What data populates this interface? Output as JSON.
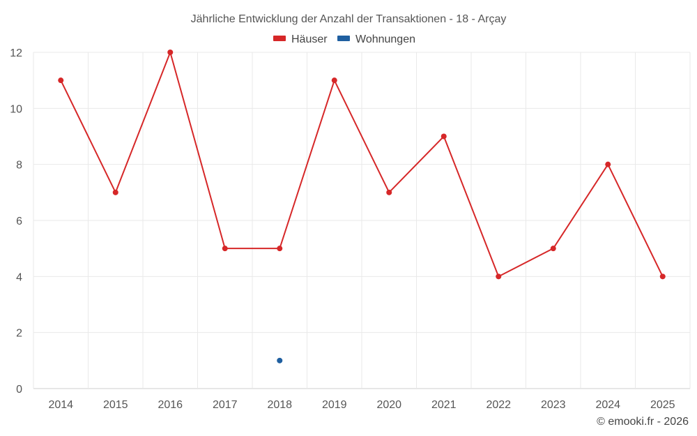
{
  "chart_data": {
    "type": "line",
    "title": "Jährliche Entwicklung der Anzahl der Transaktionen - 18 - Arçay",
    "categories": [
      "2014",
      "2015",
      "2016",
      "2017",
      "2018",
      "2019",
      "2020",
      "2021",
      "2022",
      "2023",
      "2024",
      "2025"
    ],
    "series": [
      {
        "name": "Häuser",
        "color": "#d62728",
        "values": [
          11,
          7,
          12,
          5,
          5,
          11,
          7,
          9,
          4,
          5,
          8,
          4
        ]
      },
      {
        "name": "Wohnungen",
        "color": "#1f5fa0",
        "values": [
          null,
          null,
          null,
          null,
          1,
          null,
          null,
          null,
          null,
          null,
          null,
          null
        ]
      }
    ],
    "ylim": [
      0,
      12
    ],
    "yticks": [
      "0",
      "2",
      "4",
      "6",
      "8",
      "10",
      "12"
    ],
    "grid": true,
    "legend": "top-center"
  },
  "credit": "© emooki.fr - 2026"
}
